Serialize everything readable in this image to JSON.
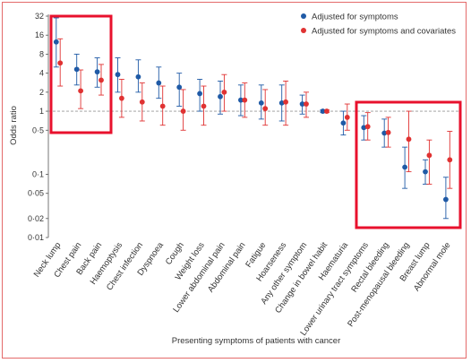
{
  "chart_data": {
    "type": "scatter",
    "ylabel": "Odds ratio",
    "xlabel": "Presenting symptoms of patients with cancer",
    "y_scale": "log",
    "ylim": [
      0.01,
      32
    ],
    "y_ticks": [
      32,
      16,
      8,
      4,
      2,
      1,
      0.5,
      0.1,
      0.05,
      0.02,
      0.01
    ],
    "y_tick_labels": [
      "32",
      "16",
      "8",
      "4",
      "2",
      "1",
      "0·5",
      "0·1",
      "0·05",
      "0·02",
      "0·01"
    ],
    "reference_line": 1,
    "legend_position": "top-right",
    "categories": [
      "Neck lump",
      "Chest pain",
      "Back pain",
      "Haemoptysis",
      "Chest infection",
      "Dyspnoea",
      "Cough",
      "Weight loss",
      "Lower abdominal pain",
      "Abdominal pain",
      "Fatigue",
      "Hoarseness",
      "Any other symptom",
      "Change in bowel habit",
      "Haematuria",
      "Lower urinary tract symptoms",
      "Rectal bleeding",
      "Post-menopausal bleeding",
      "Breast lump",
      "Abnormal mole"
    ],
    "series": [
      {
        "name": "Adjusted for symptoms",
        "color": "#1f5aa6",
        "values": [
          12.5,
          4.6,
          4.2,
          3.8,
          3.5,
          2.8,
          2.4,
          1.9,
          1.7,
          1.5,
          1.35,
          1.35,
          1.3,
          1.0,
          0.65,
          0.55,
          0.45,
          0.13,
          0.11,
          0.04
        ],
        "lower": [
          5.0,
          2.6,
          2.4,
          2.0,
          2.0,
          1.6,
          1.2,
          1.0,
          0.9,
          0.85,
          0.75,
          0.7,
          0.9,
          0.95,
          0.42,
          0.35,
          0.27,
          0.06,
          0.07,
          0.02
        ],
        "upper": [
          30,
          8.0,
          7.0,
          7.0,
          6.5,
          5.0,
          4.0,
          3.2,
          3.0,
          2.6,
          2.6,
          2.6,
          1.8,
          1.05,
          1.0,
          0.85,
          0.75,
          0.27,
          0.17,
          0.09
        ]
      },
      {
        "name": "Adjusted for symptoms and covariates",
        "color": "#e03232",
        "values": [
          5.8,
          2.1,
          3.1,
          1.6,
          1.4,
          1.2,
          1.0,
          1.2,
          2.0,
          1.5,
          1.1,
          1.4,
          1.3,
          1.0,
          0.8,
          0.57,
          0.46,
          0.36,
          0.2,
          0.17
        ],
        "lower": [
          2.5,
          1.1,
          1.8,
          0.8,
          0.7,
          0.6,
          0.5,
          0.6,
          1.0,
          0.8,
          0.6,
          0.6,
          0.8,
          0.95,
          0.5,
          0.35,
          0.27,
          0.11,
          0.07,
          0.06
        ],
        "upper": [
          14,
          4.5,
          5.5,
          3.2,
          2.8,
          2.5,
          2.2,
          2.5,
          3.8,
          2.8,
          2.2,
          3.0,
          2.0,
          1.05,
          1.3,
          0.95,
          0.8,
          1.0,
          0.35,
          0.48
        ]
      }
    ],
    "highlight_boxes": [
      {
        "name": "left-highlight",
        "from_category": "Neck lump",
        "to_category": "Back pain"
      },
      {
        "name": "right-highlight",
        "from_category": "Haematuria",
        "to_category": "Abnormal mole"
      }
    ]
  }
}
